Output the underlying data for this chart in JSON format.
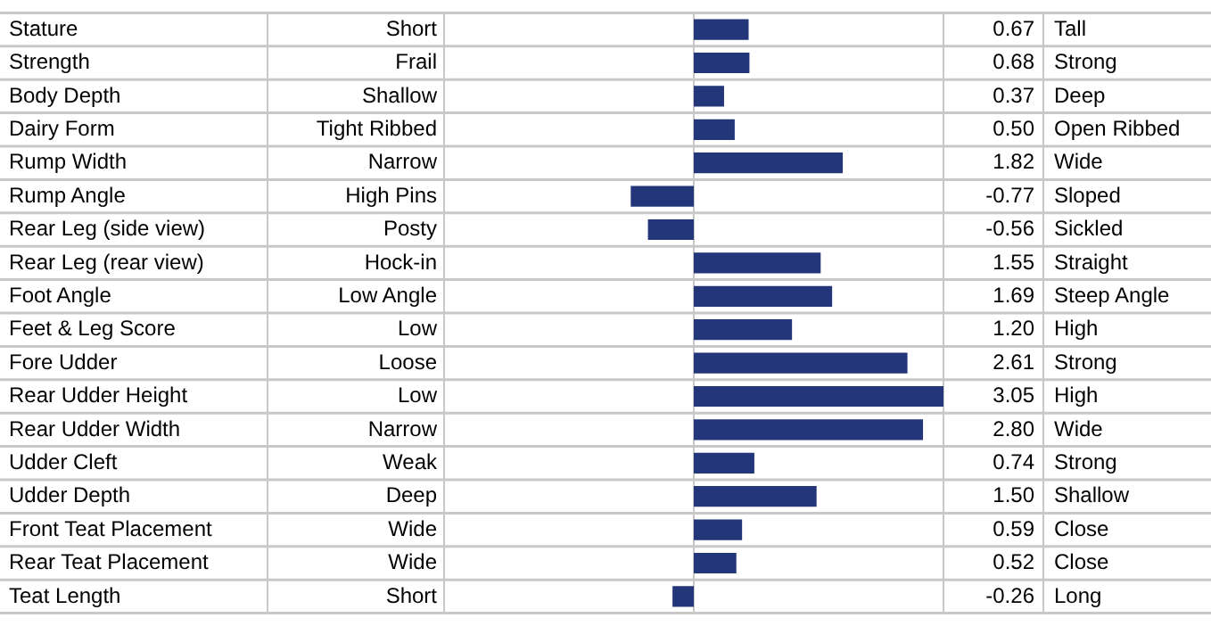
{
  "chart_data": {
    "type": "bar",
    "orientation": "horizontal",
    "categories": [
      "Stature",
      "Strength",
      "Body Depth",
      "Dairy Form",
      "Rump Width",
      "Rump Angle",
      "Rear Leg (side view)",
      "Rear Leg (rear view)",
      "Foot Angle",
      "Feet & Leg Score",
      "Fore Udder",
      "Rear Udder Height",
      "Rear Udder Width",
      "Udder Cleft",
      "Udder Depth",
      "Front Teat Placement",
      "Rear Teat Placement",
      "Teat Length"
    ],
    "values": [
      0.67,
      0.68,
      0.37,
      0.5,
      1.82,
      -0.77,
      -0.56,
      1.55,
      1.69,
      1.2,
      2.61,
      3.05,
      2.8,
      0.74,
      1.5,
      0.59,
      0.52,
      -0.26
    ],
    "value_labels": [
      "0.67",
      "0.68",
      "0.37",
      "0.50",
      "1.82",
      "-0.77",
      "-0.56",
      "1.55",
      "1.69",
      "1.20",
      "2.61",
      "3.05",
      "2.80",
      "0.74",
      "1.50",
      "0.59",
      "0.52",
      "-0.26"
    ],
    "color": "#24367a",
    "annotations": [
      "Short",
      "Frail",
      "Shallow",
      "Tight Ribbed",
      "Narrow",
      "High Pins",
      "Posty",
      "Hock-in",
      "Low Angle",
      "Low",
      "Loose",
      "Low",
      "Narrow",
      "Weak",
      "Deep",
      "Wide",
      "Wide",
      "Short",
      "Tall",
      "Strong",
      "Deep",
      "Open Ribbed",
      "Wide",
      "Sloped",
      "Sickled",
      "Straight",
      "Steep Angle",
      "High",
      "Strong",
      "High",
      "Wide",
      "Strong",
      "Shallow",
      "Close",
      "Close",
      "Long"
    ]
  }
}
